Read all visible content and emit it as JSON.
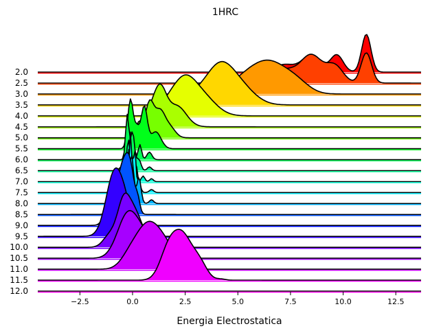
{
  "chart_data": {
    "type": "area",
    "subtype": "ridgeline",
    "title": "1HRC",
    "xlabel": "Energia Electrostatica",
    "ylabel": "",
    "xlim": [
      -4.5,
      13.7
    ],
    "x_ticks": [
      -2.5,
      0.0,
      2.5,
      5.0,
      7.5,
      10.0,
      12.5
    ],
    "x_tick_labels": [
      "−2.5",
      "0.0",
      "2.5",
      "5.0",
      "7.5",
      "10.0",
      "12.5"
    ],
    "grid": false,
    "colormap": "gist_rainbow (red → magenta)",
    "series": [
      {
        "name": "2.0",
        "color": "#ff0000",
        "peaks": [
          [
            11.1,
            0.22,
            1.0
          ],
          [
            9.7,
            0.3,
            0.45
          ],
          [
            8.5,
            0.45,
            0.45
          ],
          [
            7.2,
            0.5,
            0.2
          ]
        ]
      },
      {
        "name": "2.5",
        "color": "#ff4000",
        "peaks": [
          [
            11.1,
            0.25,
            0.8
          ],
          [
            9.6,
            0.4,
            0.45
          ],
          [
            8.5,
            0.5,
            0.72
          ],
          [
            7.2,
            0.6,
            0.35
          ]
        ]
      },
      {
        "name": "3.0",
        "color": "#ff9900",
        "peaks": [
          [
            6.6,
            0.8,
            0.72
          ],
          [
            5.4,
            0.8,
            0.4
          ],
          [
            7.8,
            0.6,
            0.25
          ]
        ]
      },
      {
        "name": "3.5",
        "color": "#ffd700",
        "peaks": [
          [
            4.1,
            0.65,
            0.95
          ],
          [
            5.1,
            0.7,
            0.45
          ],
          [
            3.0,
            0.5,
            0.2
          ]
        ]
      },
      {
        "name": "4.0",
        "color": "#e5ff00",
        "peaks": [
          [
            2.4,
            0.55,
            0.85
          ],
          [
            3.3,
            0.65,
            0.5
          ],
          [
            1.6,
            0.4,
            0.2
          ]
        ]
      },
      {
        "name": "4.5",
        "color": "#aaff00",
        "peaks": [
          [
            1.3,
            0.3,
            0.95
          ],
          [
            2.1,
            0.45,
            0.55
          ],
          [
            0.8,
            0.3,
            0.3
          ]
        ]
      },
      {
        "name": "5.0",
        "color": "#77ff00",
        "peaks": [
          [
            0.8,
            0.2,
            0.9
          ],
          [
            1.3,
            0.25,
            0.7
          ],
          [
            0.3,
            0.15,
            0.4
          ],
          [
            1.8,
            0.25,
            0.25
          ]
        ]
      },
      {
        "name": "5.5",
        "color": "#00ff1a",
        "peaks": [
          [
            -0.1,
            0.13,
            1.3
          ],
          [
            0.55,
            0.15,
            1.1
          ],
          [
            0.2,
            0.12,
            0.5
          ],
          [
            1.1,
            0.25,
            0.45
          ]
        ]
      },
      {
        "name": "6.0",
        "color": "#00ff55",
        "peaks": [
          [
            -0.25,
            0.08,
            1.2
          ],
          [
            0.0,
            0.08,
            0.75
          ],
          [
            0.35,
            0.08,
            0.4
          ],
          [
            0.8,
            0.12,
            0.2
          ]
        ]
      },
      {
        "name": "6.5",
        "color": "#00ff99",
        "peaks": [
          [
            -0.2,
            0.07,
            0.85
          ],
          [
            0.1,
            0.07,
            0.45
          ],
          [
            0.3,
            0.1,
            0.3
          ],
          [
            0.8,
            0.1,
            0.1
          ],
          [
            -0.55,
            0.08,
            0.1
          ]
        ]
      },
      {
        "name": "7.0",
        "color": "#00ffd5",
        "peaks": [
          [
            -0.15,
            0.06,
            0.95
          ],
          [
            0.15,
            0.06,
            0.55
          ],
          [
            0.5,
            0.08,
            0.15
          ],
          [
            0.9,
            0.08,
            0.08
          ]
        ]
      },
      {
        "name": "7.5",
        "color": "#00f0ff",
        "peaks": [
          [
            -0.1,
            0.06,
            1.6
          ],
          [
            0.1,
            0.06,
            1.2
          ],
          [
            0.3,
            0.08,
            0.3
          ],
          [
            0.9,
            0.1,
            0.08
          ]
        ]
      },
      {
        "name": "8.0",
        "color": "#00b3ff",
        "peaks": [
          [
            -0.4,
            0.1,
            0.6
          ],
          [
            -0.05,
            0.1,
            1.3
          ],
          [
            0.3,
            0.1,
            0.7
          ],
          [
            0.9,
            0.1,
            0.1
          ]
        ]
      },
      {
        "name": "8.5",
        "color": "#0055ff",
        "peaks": [
          [
            -0.45,
            0.3,
            1.3
          ],
          [
            -0.1,
            0.2,
            0.8
          ],
          [
            0.25,
            0.1,
            0.3
          ]
        ]
      },
      {
        "name": "9.0",
        "color": "#0011ff",
        "peaks": [
          [
            -1.0,
            0.25,
            0.9
          ],
          [
            -0.55,
            0.25,
            0.8
          ],
          [
            -0.1,
            0.2,
            0.4
          ]
        ]
      },
      {
        "name": "9.5",
        "color": "#3300ff",
        "peaks": [
          [
            -0.85,
            0.4,
            1.7
          ],
          [
            -0.3,
            0.3,
            0.5
          ]
        ]
      },
      {
        "name": "10.0",
        "color": "#7700ff",
        "peaks": [
          [
            -0.45,
            0.3,
            1.0
          ],
          [
            0.1,
            0.4,
            0.9
          ],
          [
            -1.1,
            0.3,
            0.3
          ]
        ]
      },
      {
        "name": "10.5",
        "color": "#a600ff",
        "peaks": [
          [
            -0.2,
            0.5,
            1.2
          ],
          [
            0.6,
            0.4,
            0.4
          ]
        ]
      },
      {
        "name": "11.0",
        "color": "#cc00ff",
        "peaks": [
          [
            0.7,
            0.6,
            1.15
          ],
          [
            1.6,
            0.5,
            0.45
          ],
          [
            -0.2,
            0.4,
            0.2
          ]
        ]
      },
      {
        "name": "11.5",
        "color": "#f000ff",
        "peaks": [
          [
            2.4,
            0.45,
            1.1
          ],
          [
            1.7,
            0.4,
            0.75
          ],
          [
            3.2,
            0.35,
            0.4
          ],
          [
            4.2,
            0.2,
            0.03
          ]
        ]
      },
      {
        "name": "12.0",
        "color": "#ff00ee",
        "peaks": []
      }
    ]
  }
}
